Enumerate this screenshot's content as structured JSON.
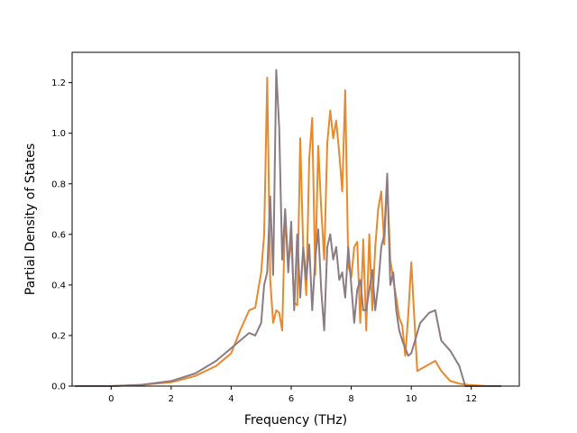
{
  "chart_data": {
    "type": "line",
    "title": "",
    "xlabel": "Frequency (THz)",
    "ylabel": "Partial Density of States",
    "xlim": [
      -1.3,
      13.6
    ],
    "ylim": [
      0.0,
      1.32
    ],
    "xticks": [
      0,
      2,
      4,
      6,
      8,
      10,
      12
    ],
    "yticks": [
      0.0,
      0.2,
      0.4,
      0.6,
      0.8,
      1.0,
      1.2
    ],
    "xtick_labels": [
      "0",
      "2",
      "4",
      "6",
      "8",
      "10",
      "12"
    ],
    "ytick_labels": [
      "0.0",
      "0.2",
      "0.4",
      "0.6",
      "0.8",
      "1.0",
      "1.2"
    ],
    "grid": false,
    "legend": "none",
    "series": [
      {
        "color": "#e8892b",
        "x": [
          -1.2,
          0.0,
          1.0,
          2.0,
          2.8,
          3.5,
          4.0,
          4.3,
          4.6,
          4.8,
          5.0,
          5.1,
          5.2,
          5.3,
          5.4,
          5.5,
          5.6,
          5.7,
          5.8,
          5.9,
          6.0,
          6.1,
          6.2,
          6.3,
          6.4,
          6.5,
          6.6,
          6.7,
          6.8,
          6.9,
          7.0,
          7.1,
          7.2,
          7.3,
          7.4,
          7.5,
          7.6,
          7.7,
          7.8,
          7.9,
          8.0,
          8.1,
          8.2,
          8.3,
          8.4,
          8.5,
          8.6,
          8.7,
          8.8,
          8.9,
          9.0,
          9.1,
          9.2,
          9.3,
          9.4,
          9.5,
          9.6,
          9.7,
          9.8,
          9.9,
          10.0,
          10.2,
          10.5,
          10.8,
          11.0,
          11.3,
          11.6,
          11.9,
          12.5,
          13.0
        ],
        "y": [
          0.0,
          0.0,
          0.005,
          0.015,
          0.04,
          0.08,
          0.13,
          0.22,
          0.3,
          0.31,
          0.45,
          0.6,
          1.22,
          0.42,
          0.25,
          0.3,
          0.29,
          0.22,
          0.69,
          0.48,
          0.58,
          0.33,
          0.32,
          0.98,
          0.55,
          0.36,
          0.9,
          1.06,
          0.44,
          0.95,
          0.7,
          0.5,
          0.96,
          1.09,
          0.98,
          1.05,
          0.92,
          0.77,
          1.17,
          0.48,
          0.43,
          0.55,
          0.57,
          0.25,
          0.58,
          0.22,
          0.6,
          0.3,
          0.55,
          0.7,
          0.77,
          0.56,
          0.81,
          0.5,
          0.42,
          0.35,
          0.27,
          0.24,
          0.12,
          0.28,
          0.49,
          0.06,
          0.08,
          0.1,
          0.06,
          0.02,
          0.01,
          0.005,
          0.0,
          0.0
        ]
      },
      {
        "color": "#8c7b83",
        "x": [
          -1.2,
          0.0,
          1.0,
          2.0,
          2.8,
          3.5,
          4.0,
          4.3,
          4.6,
          4.8,
          5.0,
          5.1,
          5.2,
          5.3,
          5.4,
          5.5,
          5.6,
          5.7,
          5.8,
          5.9,
          6.0,
          6.1,
          6.2,
          6.3,
          6.4,
          6.5,
          6.6,
          6.7,
          6.8,
          6.9,
          7.0,
          7.1,
          7.2,
          7.3,
          7.4,
          7.5,
          7.6,
          7.7,
          7.8,
          7.9,
          8.0,
          8.1,
          8.2,
          8.3,
          8.4,
          8.5,
          8.6,
          8.7,
          8.8,
          8.9,
          9.0,
          9.1,
          9.2,
          9.3,
          9.4,
          9.5,
          9.6,
          9.7,
          9.8,
          9.9,
          10.0,
          10.3,
          10.6,
          10.8,
          11.0,
          11.3,
          11.6,
          11.8,
          12.5,
          13.0
        ],
        "y": [
          0.0,
          0.0,
          0.005,
          0.02,
          0.05,
          0.1,
          0.15,
          0.18,
          0.21,
          0.2,
          0.25,
          0.4,
          0.45,
          0.75,
          0.44,
          1.25,
          1.02,
          0.5,
          0.7,
          0.45,
          0.65,
          0.3,
          0.6,
          0.35,
          0.55,
          0.42,
          0.56,
          0.3,
          0.5,
          0.62,
          0.38,
          0.22,
          0.55,
          0.6,
          0.5,
          0.55,
          0.42,
          0.45,
          0.35,
          0.55,
          0.4,
          0.25,
          0.38,
          0.42,
          0.3,
          0.3,
          0.38,
          0.46,
          0.3,
          0.4,
          0.55,
          0.6,
          0.84,
          0.4,
          0.45,
          0.3,
          0.22,
          0.18,
          0.15,
          0.12,
          0.13,
          0.25,
          0.29,
          0.3,
          0.18,
          0.14,
          0.08,
          0.0,
          0.0,
          0.0
        ]
      }
    ]
  }
}
